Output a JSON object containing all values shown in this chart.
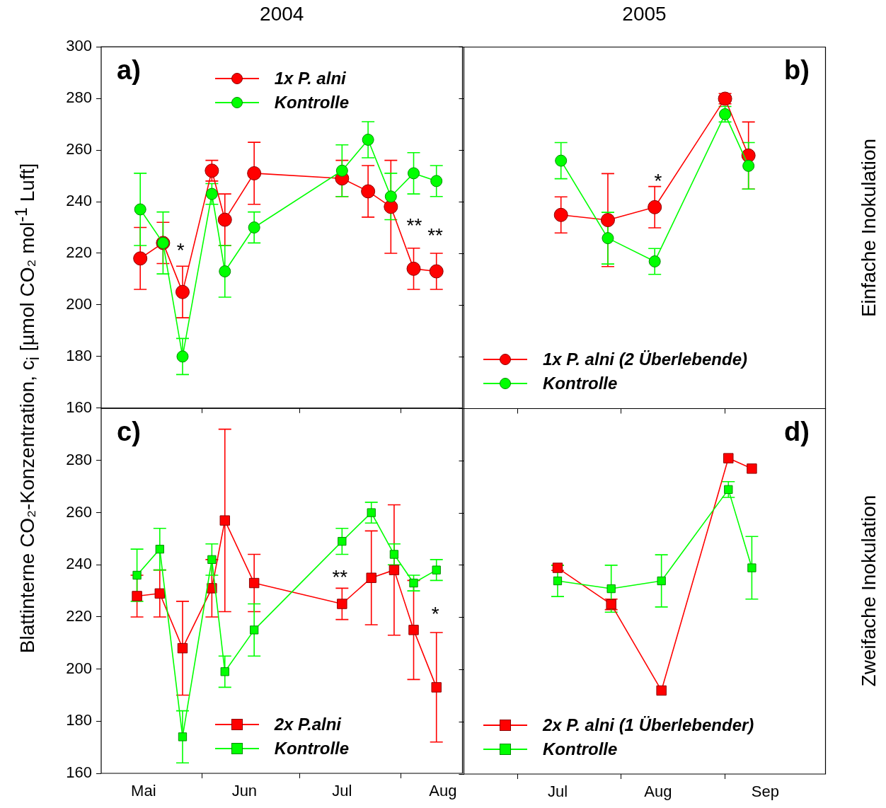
{
  "chart_data": [
    {
      "type": "line",
      "title": "2004",
      "ylabel": "Blattinterne CO₂-Konzentration, c$_{i}$ [µmol CO₂ mol$^{-1}$ Luft]",
      "x": [
        "2004-05-13",
        "2004-05-20",
        "2004-05-26",
        "2004-06-04",
        "2004-06-08",
        "2004-06-17",
        "2004-07-14",
        "2004-07-22",
        "2004-07-29",
        "2004-08-05",
        "2004-08-12"
      ],
      "series": [
        {
          "name": "1x P. alni",
          "color": "#ff0000",
          "values": [
            218,
            224,
            205,
            252,
            233,
            251,
            249,
            244,
            238,
            214,
            213
          ],
          "errors": [
            12,
            8,
            10,
            4,
            10,
            12,
            7,
            10,
            18,
            8,
            7
          ]
        },
        {
          "name": "Kontrolle",
          "color": "#00ff00",
          "values": [
            237,
            224,
            180,
            243,
            213,
            230,
            252,
            264,
            242,
            251,
            248
          ],
          "errors": [
            14,
            12,
            7,
            4,
            10,
            6,
            10,
            7,
            9,
            8,
            6
          ]
        }
      ],
      "xlim": [
        "2004-05-01",
        "2004-08-20"
      ],
      "xticks": [
        {
          "value": "2004-06-01",
          "label": null
        },
        {
          "value": "2004-07-01",
          "label": null
        },
        {
          "value": "2004-08-01",
          "label": null
        }
      ],
      "ylim": [
        160,
        300
      ],
      "yticks": [
        160,
        180,
        200,
        220,
        240,
        260,
        280,
        300
      ],
      "tick_labels": "y",
      "marker": "circle",
      "legend": "top",
      "annotations": [
        "a)",
        "*",
        "**",
        "**"
      ]
    },
    {
      "type": "line",
      "title": "2005",
      "y2label": "Einfache Inokulation",
      "x": [
        "2005-07-14",
        "2005-07-28",
        "2005-08-11",
        "2005-09-01",
        "2005-09-08"
      ],
      "series": [
        {
          "name": "1x P. alni (2 Überlebende)",
          "color": "#ff0000",
          "values": [
            235,
            233,
            238,
            280,
            258
          ],
          "errors": [
            7,
            18,
            8,
            2,
            13
          ]
        },
        {
          "name": "Kontrolle",
          "color": "#00ff00",
          "values": [
            256,
            226,
            217,
            274,
            254
          ],
          "errors": [
            7,
            10,
            5,
            3,
            9
          ]
        }
      ],
      "xlim": [
        "2005-06-15",
        "2005-10-01"
      ],
      "xticks": [
        {
          "value": "2005-07-01",
          "label": null
        },
        {
          "value": "2005-08-01",
          "label": null
        },
        {
          "value": "2005-09-01",
          "label": null
        }
      ],
      "ylim": [
        160,
        300
      ],
      "yticks": [
        {
          "value": 160,
          "label": null
        },
        {
          "value": 180,
          "label": null
        },
        {
          "value": 200,
          "label": null
        },
        {
          "value": 220,
          "label": null
        },
        {
          "value": 240,
          "label": null
        },
        {
          "value": 260,
          "label": null
        },
        {
          "value": 280,
          "label": null
        },
        {
          "value": 300,
          "label": null
        }
      ],
      "tick_labels": false,
      "marker": "circle",
      "legend": "bottom left",
      "annotations": [
        "b)",
        "*"
      ]
    },
    {
      "type": "line",
      "x": [
        "2004-05-12",
        "2004-05-19",
        "2004-05-26",
        "2004-06-04",
        "2004-06-08",
        "2004-06-17",
        "2004-07-14",
        "2004-07-23",
        "2004-07-30",
        "2004-08-05",
        "2004-08-12"
      ],
      "series": [
        {
          "name": "2x P.alni",
          "color": "#ff0000",
          "values": [
            228,
            229,
            208,
            231,
            257,
            233,
            225,
            235,
            238,
            215,
            193
          ],
          "errors": [
            8,
            9,
            18,
            11,
            35,
            11,
            6,
            18,
            25,
            19,
            21
          ]
        },
        {
          "name": "Kontrolle",
          "color": "#00ff00",
          "values": [
            236,
            246,
            174,
            242,
            199,
            215,
            249,
            260,
            244,
            233,
            238
          ],
          "errors": [
            10,
            8,
            10,
            6,
            6,
            10,
            5,
            4,
            4,
            3,
            4
          ]
        }
      ],
      "xlim": [
        "2004-05-01",
        "2004-08-20"
      ],
      "xticks": [
        {
          "value": "2004-06-01",
          "label": null
        },
        {
          "value": "2004-07-01",
          "label": null
        },
        {
          "value": "2004-08-01",
          "label": null
        },
        {
          "value": "2004-05-14",
          "label": "Mai"
        },
        {
          "value": "2004-06-14",
          "label": "Jun"
        },
        {
          "value": "2004-07-14",
          "label": "Jul"
        },
        {
          "value": "2004-08-14",
          "label": "Aug"
        }
      ],
      "ylim": [
        160,
        300
      ],
      "yticks": [
        160,
        180,
        200,
        220,
        240,
        260,
        280
      ],
      "marker": "square",
      "legend": "bottom",
      "annotations": [
        "c)",
        "**",
        "*"
      ]
    },
    {
      "type": "line",
      "y2label": "Zweifache Inokulation",
      "x": [
        "2005-07-13",
        "2005-07-29",
        "2005-08-13",
        "2005-09-02",
        "2005-09-09"
      ],
      "series": [
        {
          "name": "2x P. alni (1 Überlebender)",
          "color": "#ff0000",
          "values": [
            239,
            225,
            192,
            281,
            277
          ],
          "errors": [
            1,
            2,
            null,
            null,
            null
          ]
        },
        {
          "name": "Kontrolle",
          "color": "#00ff00",
          "values": [
            234,
            231,
            234,
            269,
            239
          ],
          "errors": [
            6,
            9,
            10,
            3,
            12
          ]
        }
      ],
      "xlim": [
        "2005-06-15",
        "2005-10-01"
      ],
      "xticks": [
        {
          "value": "2005-07-01",
          "label": null
        },
        {
          "value": "2005-08-01",
          "label": null
        },
        {
          "value": "2005-09-01",
          "label": null
        },
        {
          "value": "2005-07-13",
          "label": "Jul"
        },
        {
          "value": "2005-08-12",
          "label": "Aug"
        },
        {
          "value": "2005-09-13",
          "label": "Sep"
        }
      ],
      "ylim": [
        160,
        300
      ],
      "yticks": [
        {
          "value": 160,
          "label": null
        },
        {
          "value": 180,
          "label": null
        },
        {
          "value": 200,
          "label": null
        },
        {
          "value": 220,
          "label": null
        },
        {
          "value": 240,
          "label": null
        },
        {
          "value": 260,
          "label": null
        },
        {
          "value": 280,
          "label": null
        },
        {
          "value": 300,
          "label": null
        }
      ],
      "tick_labels": "x",
      "marker": "square",
      "legend": "bottom left",
      "annotations": [
        "d)"
      ]
    }
  ]
}
